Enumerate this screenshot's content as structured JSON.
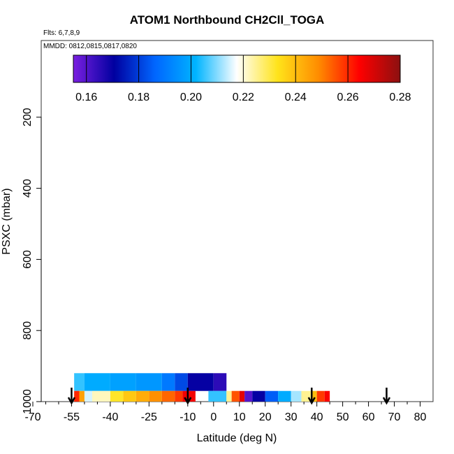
{
  "title": "ATOM1 Northbound CH2Cll_TOGA",
  "subtitles": {
    "flights": "Flts: 6,7,8,9",
    "dates": "MMDD: 0812,0815,0817,0820"
  },
  "colorbar": {
    "ticks": [
      "0.16",
      "0.18",
      "0.20",
      "0.22",
      "0.24",
      "0.26",
      "0.28"
    ],
    "min": 0.155,
    "max": 0.28,
    "stops": [
      "#7a1fe0",
      "#0000a0",
      "#0066ff",
      "#00b4ff",
      "#ffffff",
      "#ffe31a",
      "#ff8c00",
      "#ff0000",
      "#8b1010"
    ]
  },
  "chart_data": {
    "type": "heatmap",
    "title": "ATOM1 Northbound CH2Cll_TOGA",
    "xlabel": "Latitude (deg N)",
    "ylabel": "PSXC (mbar)",
    "xlim": [
      -70,
      85
    ],
    "ylim": [
      1000,
      0
    ],
    "x_ticks": [
      -70,
      -55,
      -40,
      -25,
      -10,
      0,
      10,
      20,
      30,
      40,
      50,
      60,
      70,
      80
    ],
    "y_ticks": [
      200,
      400,
      600,
      800,
      1000
    ],
    "color_value_range": [
      0.155,
      0.28
    ],
    "bands": [
      {
        "p_top": 920,
        "p_bottom": 970,
        "segments": [
          {
            "lat": [
              -54,
              -50
            ],
            "value": 0.205
          },
          {
            "lat": [
              -50,
              -40
            ],
            "value": 0.2
          },
          {
            "lat": [
              -40,
              -30
            ],
            "value": 0.198
          },
          {
            "lat": [
              -30,
              -20
            ],
            "value": 0.196
          },
          {
            "lat": [
              -20,
              -15
            ],
            "value": 0.19
          },
          {
            "lat": [
              -15,
              -10
            ],
            "value": 0.182
          },
          {
            "lat": [
              -10,
              0
            ],
            "value": 0.17
          },
          {
            "lat": [
              0,
              5
            ],
            "value": 0.165
          }
        ]
      },
      {
        "p_top": 970,
        "p_bottom": 1000,
        "segments": [
          {
            "lat": [
              -54,
              -52
            ],
            "value": 0.26
          },
          {
            "lat": [
              -52,
              -50
            ],
            "value": 0.245
          },
          {
            "lat": [
              -50,
              -47
            ],
            "value": 0.215
          },
          {
            "lat": [
              -47,
              -40
            ],
            "value": 0.222
          },
          {
            "lat": [
              -40,
              -35
            ],
            "value": 0.232
          },
          {
            "lat": [
              -35,
              -30
            ],
            "value": 0.238
          },
          {
            "lat": [
              -30,
              -25
            ],
            "value": 0.243
          },
          {
            "lat": [
              -25,
              -20
            ],
            "value": 0.248
          },
          {
            "lat": [
              -20,
              -15
            ],
            "value": 0.253
          },
          {
            "lat": [
              -15,
              -12
            ],
            "value": 0.258
          },
          {
            "lat": [
              -12,
              -7
            ],
            "value": 0.266
          },
          {
            "lat": [
              -2,
              5
            ],
            "value": 0.205
          },
          {
            "lat": [
              5,
              7
            ],
            "value": 0.225
          },
          {
            "lat": [
              7,
              10
            ],
            "value": 0.255
          },
          {
            "lat": [
              10,
              12
            ],
            "value": 0.268
          },
          {
            "lat": [
              12,
              15
            ],
            "value": 0.16
          },
          {
            "lat": [
              15,
              20
            ],
            "value": 0.17
          },
          {
            "lat": [
              20,
              25
            ],
            "value": 0.185
          },
          {
            "lat": [
              25,
              30
            ],
            "value": 0.2
          },
          {
            "lat": [
              30,
              34
            ],
            "value": 0.212
          },
          {
            "lat": [
              34,
              38
            ],
            "value": 0.225
          },
          {
            "lat": [
              38,
              40
            ],
            "value": 0.24
          },
          {
            "lat": [
              40,
              43
            ],
            "value": 0.258
          },
          {
            "lat": [
              43,
              45
            ],
            "value": 0.265
          }
        ]
      }
    ],
    "markers_arrows_lat": [
      -55,
      -10,
      38,
      67
    ]
  }
}
